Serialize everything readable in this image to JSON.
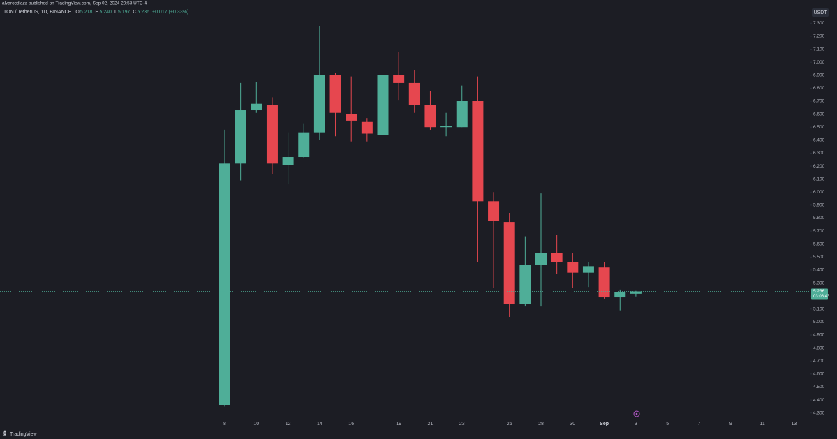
{
  "header": {
    "published": "alvarocdiazz published on TradingView.com, Sep 02, 2024 20:53 UTC-4",
    "legend": [
      {
        "label": "O",
        "value": "5.218"
      },
      {
        "label": "H",
        "value": "5.240"
      },
      {
        "label": "L",
        "value": "5.197"
      },
      {
        "label": "C",
        "value": "5.236"
      }
    ],
    "change": "+0.017 (+0.33%)"
  },
  "footer": {
    "brand": "TradingView"
  },
  "chart_data": {
    "type": "candlestick",
    "title": "TON / TetherUS, 1D, BINANCE",
    "currency": "USDT",
    "countdown": "03:06:43",
    "up_color": "#4fae98",
    "down_color": "#e6474f",
    "categories": [
      "8",
      null,
      "10",
      null,
      "12",
      null,
      "14",
      null,
      "16",
      null,
      null,
      "19",
      null,
      "21",
      null,
      "23",
      null,
      null,
      "26",
      null,
      "28",
      null,
      "30",
      null,
      "Sep",
      null,
      "3",
      null,
      "5",
      null,
      "7",
      null,
      "9",
      null,
      "11",
      null,
      "13"
    ],
    "open": [
      4.36,
      6.22,
      6.63,
      6.67,
      6.21,
      6.27,
      6.46,
      6.9,
      6.6,
      6.54,
      6.44,
      6.9,
      6.84,
      6.67,
      6.5,
      6.5,
      6.7,
      5.93,
      5.77,
      5.14,
      5.44,
      5.53,
      5.46,
      5.38,
      5.42,
      5.19,
      5.218,
      null,
      null,
      null,
      null,
      null,
      null,
      null,
      null,
      null,
      null
    ],
    "high": [
      6.48,
      6.84,
      6.85,
      6.73,
      6.46,
      6.53,
      7.28,
      6.92,
      6.89,
      6.57,
      7.11,
      7.08,
      6.94,
      6.78,
      6.61,
      6.82,
      6.89,
      6.0,
      5.84,
      5.66,
      5.99,
      5.67,
      5.53,
      5.46,
      5.46,
      5.25,
      5.24,
      null,
      null,
      null,
      null,
      null,
      null,
      null,
      null,
      null,
      null
    ],
    "low": [
      4.35,
      6.09,
      6.61,
      6.14,
      6.06,
      6.26,
      6.4,
      6.43,
      6.39,
      6.39,
      6.4,
      6.71,
      6.61,
      6.48,
      6.43,
      6.5,
      5.46,
      5.26,
      5.04,
      5.12,
      5.12,
      5.37,
      5.26,
      5.27,
      5.18,
      5.09,
      5.197,
      null,
      null,
      null,
      null,
      null,
      null,
      null,
      null,
      null,
      null
    ],
    "close": [
      6.22,
      6.63,
      6.68,
      6.22,
      6.27,
      6.46,
      6.9,
      6.61,
      6.55,
      6.45,
      6.9,
      6.84,
      6.67,
      6.5,
      6.51,
      6.7,
      5.93,
      5.78,
      5.14,
      5.44,
      5.53,
      5.46,
      5.38,
      5.43,
      5.19,
      5.23,
      5.236,
      null,
      null,
      null,
      null,
      null,
      null,
      null,
      null,
      null,
      null
    ],
    "ylim": [
      4.25,
      7.35
    ],
    "yticks": [
      {
        "value": 4.3,
        "label": "4.300"
      },
      {
        "value": 4.4,
        "label": "4.400"
      },
      {
        "value": 4.5,
        "label": "4.500"
      },
      {
        "value": 4.6,
        "label": "4.600"
      },
      {
        "value": 4.7,
        "label": "4.700"
      },
      {
        "value": 4.8,
        "label": "4.800"
      },
      {
        "value": 4.9,
        "label": "4.900"
      },
      {
        "value": 5.0,
        "label": "5.000"
      },
      {
        "value": 5.1,
        "label": "5.100"
      },
      {
        "value": 5.2,
        "label": "5.200"
      },
      {
        "value": 5.3,
        "label": "5.300"
      },
      {
        "value": 5.4,
        "label": "5.400"
      },
      {
        "value": 5.5,
        "label": "5.500"
      },
      {
        "value": 5.6,
        "label": "5.600"
      },
      {
        "value": 5.7,
        "label": "5.700"
      },
      {
        "value": 5.8,
        "label": "5.800"
      },
      {
        "value": 5.9,
        "label": "5.900"
      },
      {
        "value": 6.0,
        "label": "6.000"
      },
      {
        "value": 6.1,
        "label": "6.100"
      },
      {
        "value": 6.2,
        "label": "6.200"
      },
      {
        "value": 6.3,
        "label": "6.300"
      },
      {
        "value": 6.4,
        "label": "6.400"
      },
      {
        "value": 6.5,
        "label": "6.500"
      },
      {
        "value": 6.6,
        "label": "6.600"
      },
      {
        "value": 6.7,
        "label": "6.700"
      },
      {
        "value": 6.8,
        "label": "6.800"
      },
      {
        "value": 6.9,
        "label": "6.900"
      },
      {
        "value": 7.0,
        "label": "7.000"
      },
      {
        "value": 7.1,
        "label": "7.100"
      },
      {
        "value": 7.2,
        "label": "7.200"
      },
      {
        "value": 7.3,
        "label": "7.300"
      }
    ]
  }
}
